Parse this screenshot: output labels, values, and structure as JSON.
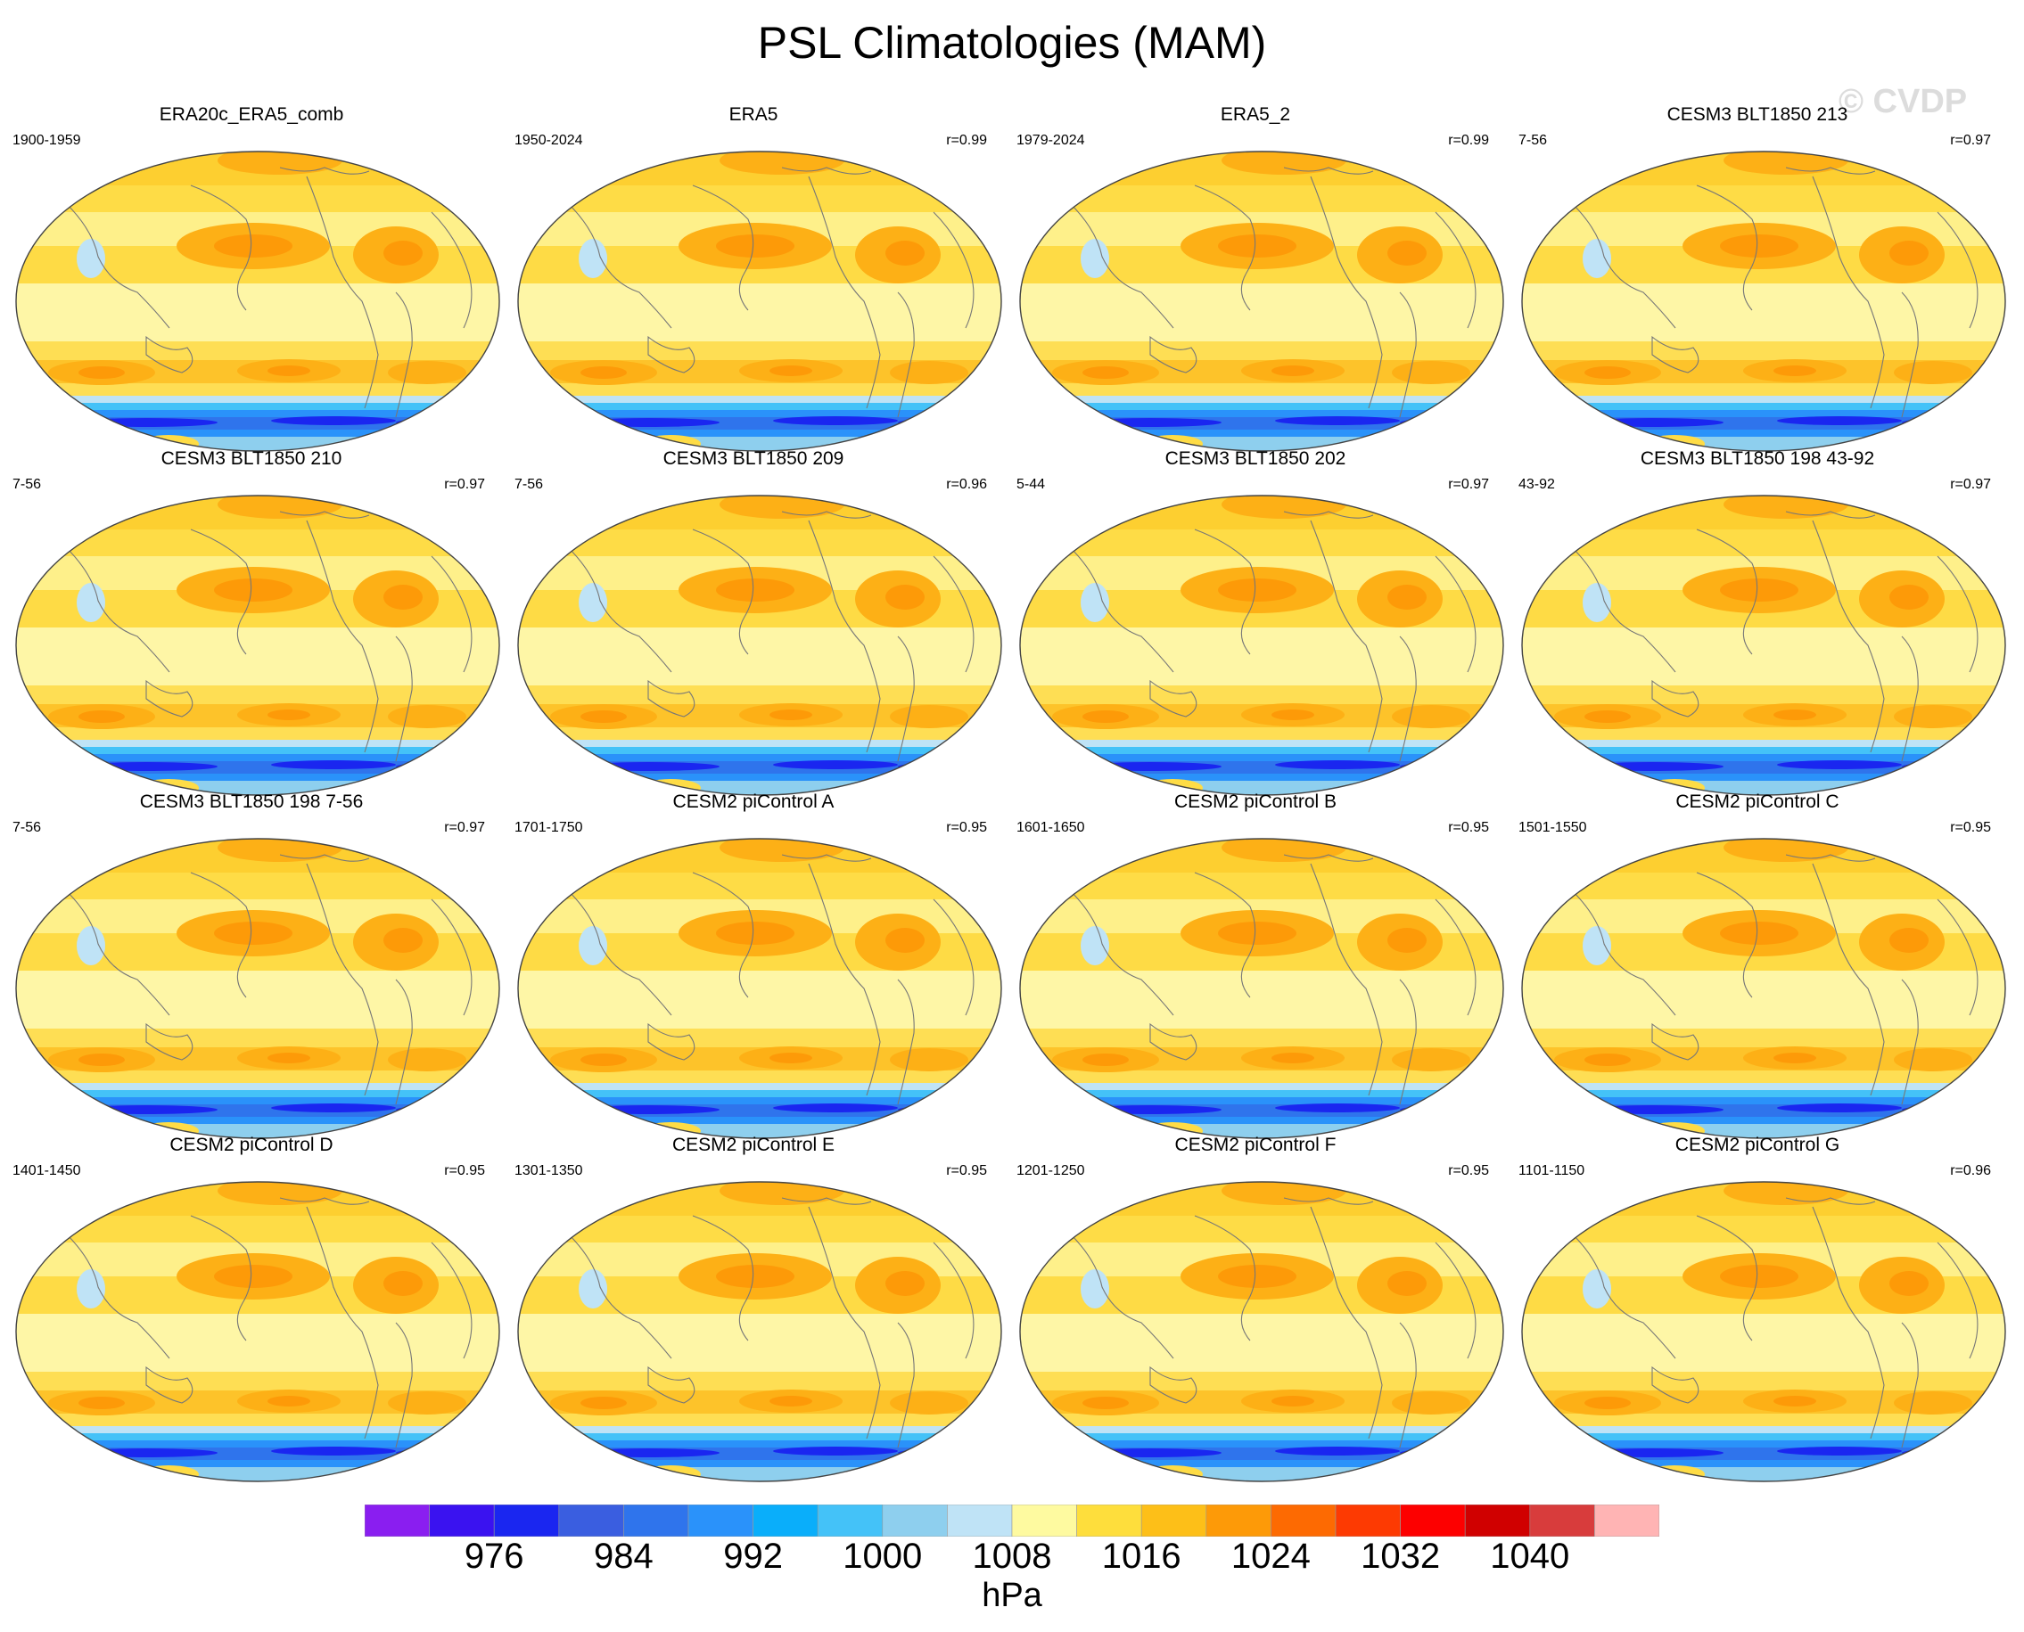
{
  "title": "PSL Climatologies (MAM)",
  "watermark": "© CVDP",
  "panels": [
    {
      "title": "ERA20c_ERA5_comb",
      "years": "1900-1959",
      "corr": ""
    },
    {
      "title": "ERA5",
      "years": "1950-2024",
      "corr": "r=0.99"
    },
    {
      "title": "ERA5_2",
      "years": "1979-2024",
      "corr": "r=0.99"
    },
    {
      "title": "CESM3 BLT1850 213",
      "years": "7-56",
      "corr": "r=0.97"
    },
    {
      "title": "CESM3 BLT1850 210",
      "years": "7-56",
      "corr": "r=0.97"
    },
    {
      "title": "CESM3 BLT1850 209",
      "years": "7-56",
      "corr": "r=0.96"
    },
    {
      "title": "CESM3 BLT1850 202",
      "years": "5-44",
      "corr": "r=0.97"
    },
    {
      "title": "CESM3 BLT1850 198 43-92",
      "years": "43-92",
      "corr": "r=0.97"
    },
    {
      "title": "CESM3 BLT1850 198 7-56",
      "years": "7-56",
      "corr": "r=0.97"
    },
    {
      "title": "CESM2 piControl A",
      "years": "1701-1750",
      "corr": "r=0.95"
    },
    {
      "title": "CESM2 piControl B",
      "years": "1601-1650",
      "corr": "r=0.95"
    },
    {
      "title": "CESM2 piControl C",
      "years": "1501-1550",
      "corr": "r=0.95"
    },
    {
      "title": "CESM2 piControl D",
      "years": "1401-1450",
      "corr": "r=0.95"
    },
    {
      "title": "CESM2 piControl E",
      "years": "1301-1350",
      "corr": "r=0.95"
    },
    {
      "title": "CESM2 piControl F",
      "years": "1201-1250",
      "corr": "r=0.95"
    },
    {
      "title": "CESM2 piControl G",
      "years": "1101-1150",
      "corr": "r=0.96"
    }
  ],
  "colorbar": {
    "colors": [
      "#8a1ef0",
      "#3a12f0",
      "#1a26f0",
      "#3a5ee0",
      "#2f74ec",
      "#2a92fa",
      "#0aaefa",
      "#44c2f8",
      "#8ecfee",
      "#bfe3f6",
      "#fefaa0",
      "#fede3c",
      "#fdbf18",
      "#fd9a08",
      "#fd6a02",
      "#fd3a02",
      "#fd0000",
      "#d00000",
      "#d83c3c",
      "#ffb4b4"
    ],
    "ticks": [
      "976",
      "984",
      "992",
      "1000",
      "1008",
      "1016",
      "1024",
      "1032",
      "1040"
    ],
    "units": "hPa"
  }
}
